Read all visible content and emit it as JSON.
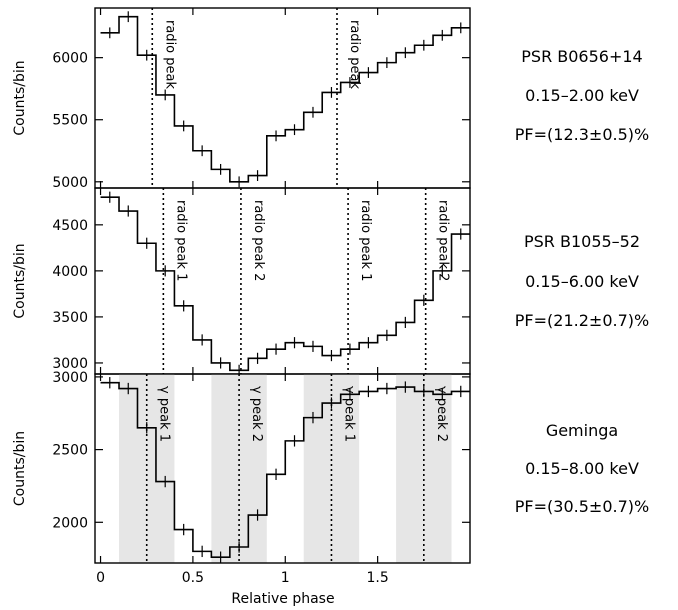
{
  "chart_data": {
    "type": "line",
    "style": "histogram",
    "xlabel": "Relative phase",
    "x_ticks": [
      0,
      0.5,
      1,
      1.5
    ],
    "x_tick_labels": [
      "0",
      "0.5",
      "1",
      "1.5"
    ],
    "xlim": [
      -0.03,
      2.0
    ],
    "panels": [
      {
        "name": "PSR B0656+14",
        "ylabel": "Counts/bin",
        "ylim": [
          4950,
          6400
        ],
        "y_ticks": [
          5000,
          5500,
          6000
        ],
        "y_tick_labels": [
          "5000",
          "5500",
          "6000"
        ],
        "info": [
          "PSR B0656+14",
          "0.15–2.00 keV",
          "PF=(12.3±0.5)%"
        ],
        "markers": [
          {
            "x": 0.28,
            "label": "radio peak"
          },
          {
            "x": 1.28,
            "label": "radio peak"
          }
        ],
        "shaded_regions": [],
        "bins": 20,
        "values": [
          6200,
          6330,
          6020,
          5700,
          5450,
          5250,
          5100,
          5000,
          5050,
          5370,
          5420,
          5560,
          5720,
          5800,
          5880,
          5960,
          6040,
          6100,
          6180,
          6240
        ]
      },
      {
        "name": "PSR B1055–52",
        "ylabel": "Counts/bin",
        "ylim": [
          2880,
          4900
        ],
        "y_ticks": [
          3000,
          3500,
          4000,
          4500
        ],
        "y_tick_labels": [
          "3000",
          "3500",
          "4000",
          "4500"
        ],
        "info": [
          "PSR B1055–52",
          "0.15–6.00 keV",
          "PF=(21.2±0.7)%"
        ],
        "markers": [
          {
            "x": 0.34,
            "label": "radio peak 1"
          },
          {
            "x": 0.76,
            "label": "radio peak 2"
          },
          {
            "x": 1.34,
            "label": "radio peak 1"
          },
          {
            "x": 1.76,
            "label": "radio peak 2"
          }
        ],
        "shaded_regions": [],
        "bins": 20,
        "values": [
          4800,
          4650,
          4300,
          4000,
          3620,
          3250,
          3000,
          2920,
          3050,
          3150,
          3220,
          3180,
          3080,
          3150,
          3220,
          3300,
          3440,
          3680,
          4000,
          4400
        ]
      },
      {
        "name": "Geminga",
        "ylabel": "Counts/bin",
        "ylim": [
          1720,
          3020
        ],
        "y_ticks": [
          2000,
          2500,
          3000
        ],
        "y_tick_labels": [
          "2000",
          "2500",
          "3000"
        ],
        "info": [
          "Geminga",
          "0.15–8.00 keV",
          "PF=(30.5±0.7)%"
        ],
        "markers": [
          {
            "x": 0.25,
            "label": "γ peak 1"
          },
          {
            "x": 0.75,
            "label": "γ peak 2"
          },
          {
            "x": 1.25,
            "label": "γ peak 1"
          },
          {
            "x": 1.75,
            "label": "γ peak 2"
          }
        ],
        "shaded_regions": [
          [
            0.1,
            0.4
          ],
          [
            0.6,
            0.9
          ],
          [
            1.1,
            1.4
          ],
          [
            1.6,
            1.9
          ]
        ],
        "bins": 20,
        "values": [
          2960,
          2920,
          2650,
          2280,
          1950,
          1800,
          1760,
          1830,
          2050,
          2330,
          2560,
          2720,
          2820,
          2880,
          2900,
          2920,
          2930,
          2900,
          2880,
          2900
        ]
      }
    ]
  }
}
